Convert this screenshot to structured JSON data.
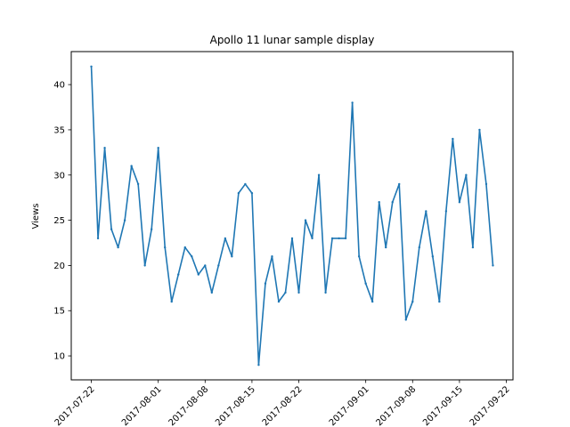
{
  "chart_data": {
    "type": "line",
    "title": "Apollo 11 lunar sample display",
    "xlabel": "",
    "ylabel": "Views",
    "x_ticks": [
      "2017-07-22",
      "2017-08-01",
      "2017-08-08",
      "2017-08-15",
      "2017-08-22",
      "2017-09-01",
      "2017-09-08",
      "2017-09-15",
      "2017-09-22"
    ],
    "y_ticks": [
      10,
      15,
      20,
      25,
      30,
      35,
      40
    ],
    "ylim": [
      7.35,
      43.65
    ],
    "xlim": [
      "2017-07-19",
      "2017-09-23"
    ],
    "grid": false,
    "color": "#1f77b4",
    "series": [
      {
        "x": [
          "2017-07-22",
          "2017-07-23",
          "2017-07-24",
          "2017-07-25",
          "2017-07-26",
          "2017-07-27",
          "2017-07-28",
          "2017-07-29",
          "2017-07-30",
          "2017-07-31",
          "2017-08-01",
          "2017-08-02",
          "2017-08-03",
          "2017-08-04",
          "2017-08-05",
          "2017-08-06",
          "2017-08-07",
          "2017-08-08",
          "2017-08-09",
          "2017-08-10",
          "2017-08-11",
          "2017-08-12",
          "2017-08-13",
          "2017-08-14",
          "2017-08-15",
          "2017-08-16",
          "2017-08-17",
          "2017-08-18",
          "2017-08-19",
          "2017-08-20",
          "2017-08-21",
          "2017-08-22",
          "2017-08-23",
          "2017-08-24",
          "2017-08-25",
          "2017-08-26",
          "2017-08-27",
          "2017-08-28",
          "2017-08-29",
          "2017-08-30",
          "2017-08-31",
          "2017-09-01",
          "2017-09-02",
          "2017-09-03",
          "2017-09-04",
          "2017-09-05",
          "2017-09-06",
          "2017-09-07",
          "2017-09-08",
          "2017-09-09",
          "2017-09-10",
          "2017-09-11",
          "2017-09-12",
          "2017-09-13",
          "2017-09-14",
          "2017-09-15",
          "2017-09-16",
          "2017-09-17",
          "2017-09-18",
          "2017-09-19",
          "2017-09-20"
        ],
        "values": [
          42,
          23,
          33,
          24,
          22,
          25,
          31,
          29,
          20,
          24,
          33,
          22,
          16,
          19,
          22,
          21,
          19,
          20,
          17,
          20,
          23,
          21,
          28,
          29,
          28,
          9,
          18,
          21,
          16,
          17,
          23,
          17,
          25,
          23,
          30,
          17,
          23,
          23,
          23,
          38,
          21,
          18,
          16,
          27,
          22,
          27,
          29,
          14,
          16,
          22,
          26,
          21,
          16,
          26,
          34,
          27,
          30,
          22,
          35,
          29,
          20
        ]
      }
    ]
  }
}
